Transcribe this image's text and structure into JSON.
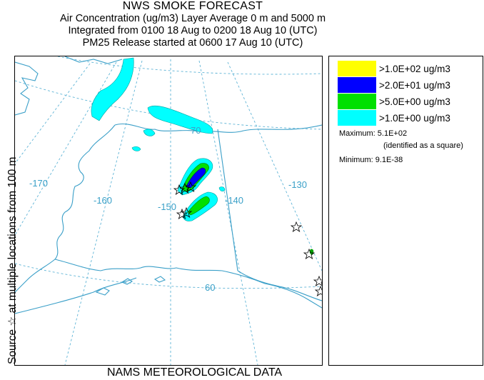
{
  "title": {
    "main": "NWS SMOKE FORECAST",
    "line1": "Air Concentration (ug/m3) Layer Average    0 m and  5000 m",
    "line2": "Integrated from 0100 18 Aug to 0200 18 Aug 10 (UTC)",
    "line3": "PM25 Release started at 0600 17 Aug 10 (UTC)"
  },
  "side_label": "Source ☆   at multiple locations    from   100 m",
  "bottom_label": "NAMS METEOROLOGICAL DATA",
  "map": {
    "labels": {
      "lon_170": "-170",
      "lon_160": "-160",
      "lon_150": "-150",
      "lon_140": "-140",
      "lon_130": "-130",
      "lat_70": "70",
      "lat_60": "60"
    },
    "colors": {
      "land_line": "#3a9fc8",
      "grid": "#5fb4d6",
      "level_1": "#ffff00",
      "level_2": "#0000ff",
      "level_3": "#00e000",
      "level_4": "#00ffff"
    },
    "source_marker": "star-icon"
  },
  "legend": {
    "items": [
      {
        "label": ">1.0E+02 ug/m3",
        "color": "#ffff00"
      },
      {
        "label": ">2.0E+01 ug/m3",
        "color": "#0000ff"
      },
      {
        "label": ">5.0E+00 ug/m3",
        "color": "#00e000"
      },
      {
        "label": ">1.0E+00 ug/m3",
        "color": "#00ffff"
      }
    ],
    "maximum": "Maximum: 5.1E+02",
    "maximum_note": "(identified as a square)",
    "minimum": "Minimum: 9.1E-38"
  }
}
